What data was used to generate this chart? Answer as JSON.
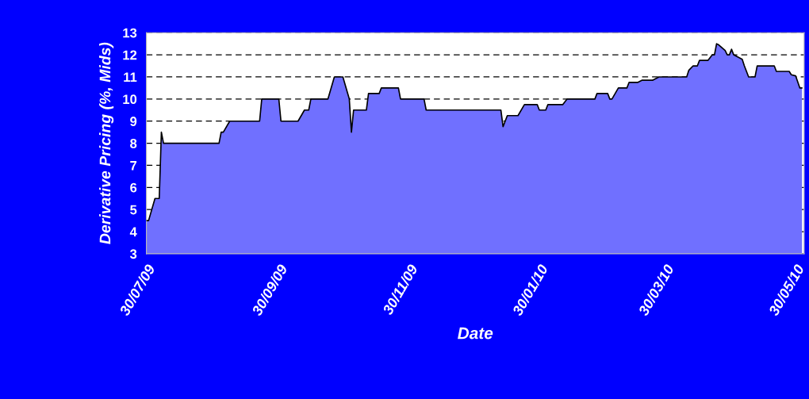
{
  "chart_data": {
    "type": "area",
    "xlabel": "Date",
    "ylabel": "Derivative Pricing (%, Mids)",
    "x": [
      "2009-07-30",
      "2009-07-31",
      "2009-08-03",
      "2009-08-05",
      "2009-08-06",
      "2009-08-07",
      "2009-09-02",
      "2009-09-03",
      "2009-09-04",
      "2009-09-07",
      "2009-09-21",
      "2009-09-22",
      "2009-09-30",
      "2009-10-01",
      "2009-10-09",
      "2009-10-12",
      "2009-10-14",
      "2009-10-15",
      "2009-10-23",
      "2009-10-26",
      "2009-10-30",
      "2009-11-02",
      "2009-11-03",
      "2009-11-04",
      "2009-11-10",
      "2009-11-11",
      "2009-11-16",
      "2009-11-17",
      "2009-11-25",
      "2009-11-26",
      "2009-12-07",
      "2009-12-08",
      "2010-01-12",
      "2010-01-13",
      "2010-01-15",
      "2010-01-20",
      "2010-01-23",
      "2010-01-29",
      "2010-01-30",
      "2010-02-02",
      "2010-02-03",
      "2010-02-10",
      "2010-02-12",
      "2010-02-25",
      "2010-02-26",
      "2010-03-03",
      "2010-03-04",
      "2010-03-05",
      "2010-03-08",
      "2010-03-12",
      "2010-03-13",
      "2010-03-17",
      "2010-03-19",
      "2010-03-24",
      "2010-03-27",
      "2010-04-09",
      "2010-04-10",
      "2010-04-12",
      "2010-04-14",
      "2010-04-15",
      "2010-04-19",
      "2010-04-21",
      "2010-04-22",
      "2010-04-23",
      "2010-04-24",
      "2010-04-27",
      "2010-04-28",
      "2010-04-29",
      "2010-04-30",
      "2010-05-01",
      "2010-05-02",
      "2010-05-05",
      "2010-05-06",
      "2010-05-08",
      "2010-05-11",
      "2010-05-12",
      "2010-05-20",
      "2010-05-21",
      "2010-05-27",
      "2010-05-28",
      "2010-05-30",
      "2010-06-01",
      "2010-06-02"
    ],
    "series": [
      {
        "color": "#7070ff",
        "values": [
          4.5,
          4.5,
          5.5,
          5.5,
          8.5,
          8,
          8,
          8.5,
          8.5,
          9,
          9,
          10,
          10,
          9,
          9,
          9.5,
          9.5,
          10,
          10,
          11,
          11,
          10,
          8.5,
          9.5,
          9.5,
          10.25,
          10.25,
          10.5,
          10.5,
          10,
          10,
          9.5,
          9.5,
          8.75,
          9.25,
          9.25,
          9.75,
          9.75,
          9.5,
          9.5,
          9.75,
          9.75,
          10,
          10,
          10.25,
          10.25,
          10,
          10,
          10.5,
          10.5,
          10.75,
          10.75,
          10.85,
          10.85,
          11,
          11,
          11.3,
          11.5,
          11.5,
          11.75,
          11.75,
          12,
          12,
          12.5,
          12.45,
          12.2,
          12,
          12,
          12.25,
          12,
          11.95,
          11.8,
          11.5,
          11,
          11,
          11.5,
          11.5,
          11.25,
          11.25,
          11.1,
          11.05,
          10.5,
          10.5
        ]
      }
    ],
    "xlim": [
      "2009-07-30",
      "2010-06-03"
    ],
    "xticks": [
      {
        "value": "2009-07-30",
        "label": "30/07/09"
      },
      {
        "value": "2009-09-30",
        "label": "30/09/09"
      },
      {
        "value": "2009-11-30",
        "label": "30/11/09"
      },
      {
        "value": "2010-01-30",
        "label": "30/01/10"
      },
      {
        "value": "2010-03-30",
        "label": "30/03/10"
      },
      {
        "value": "2010-05-30",
        "label": "30/05/10"
      }
    ],
    "ylim": [
      3,
      13
    ],
    "yticks": [
      3,
      4,
      5,
      6,
      7,
      8,
      9,
      10,
      11,
      12,
      13
    ],
    "grid": "y",
    "line_style": "solid"
  }
}
